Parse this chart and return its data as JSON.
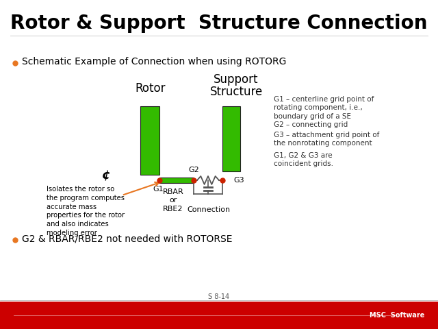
{
  "title": "Rotor & Support  Structure Connection",
  "bullet1": "Schematic Example of Connection when using ROTORG",
  "bullet2": "G2 & RBAR/RBE2 not needed with ROTORSE",
  "rotor_label": "Rotor",
  "support_label_1": "Support",
  "support_label_2": "Structure",
  "g1_label": "G1",
  "g2_label": "G2",
  "g3_label": "G3",
  "rbar_label": "RBAR\nor\nRBE2",
  "connection_label": "Connection",
  "centerline_symbol": "¢",
  "isolates_text": "Isolates the rotor so\nthe program computes\naccurate mass\nproperties for the rotor\nand also indicates\nmodeling error",
  "g1_note": "G1 – centerline grid point of\nrotating component, i.e.,\nboundary grid of a SE",
  "g2_note": "G2 – connecting grid",
  "g3_note": "G3 – attachment grid point of\nthe nonrotating component",
  "g123_note": "G1, G2 & G3 are\ncoincident grids.",
  "green_color": "#33bb00",
  "orange_color": "#E87722",
  "red_dot_color": "#cc2200",
  "line_color": "#555555",
  "bg_color": "#ffffff",
  "footer_bar_color": "#cc0000",
  "slide_number": "S 8-14",
  "title_fontsize": 20,
  "body_fontsize": 10,
  "small_fontsize": 8,
  "note_fontsize": 7.5
}
